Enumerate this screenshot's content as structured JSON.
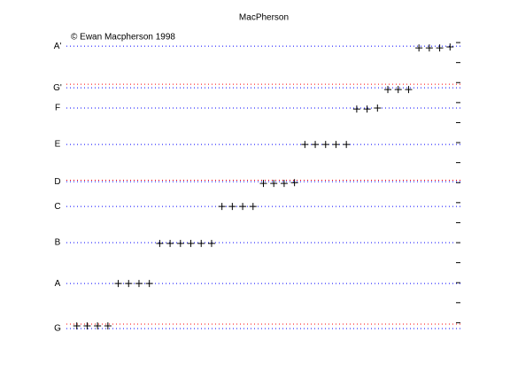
{
  "chart_data": {
    "type": "scatter",
    "title": "MacPherson",
    "annotation": "© Ewan Macpherson 1998",
    "xlim": [
      0,
      38
    ],
    "ylim": [
      0,
      1580
    ],
    "x": [
      1,
      2,
      3,
      4,
      5,
      6,
      7,
      8,
      9,
      10,
      11,
      12,
      13,
      14,
      15,
      16,
      17,
      18,
      19,
      20,
      21,
      22,
      23,
      24,
      25,
      26,
      27,
      28,
      29,
      30,
      31,
      32,
      33,
      34,
      35,
      36,
      37
    ],
    "values": [
      84,
      84,
      84,
      84,
      296,
      296,
      296,
      296,
      496,
      496,
      496,
      496,
      496,
      496,
      681,
      681,
      681,
      681,
      796,
      796,
      796,
      800,
      991,
      991,
      991,
      991,
      991,
      1168,
      1168,
      1173,
      1265,
      1265,
      1265,
      1473,
      1473,
      1473,
      1478
    ],
    "marker_color": "#000000",
    "yticks": [
      {
        "value": 71,
        "label": "G"
      },
      {
        "value": 296,
        "label": "A"
      },
      {
        "value": 500,
        "label": "B"
      },
      {
        "value": 681,
        "label": "C"
      },
      {
        "value": 805,
        "label": "D"
      },
      {
        "value": 991,
        "label": "E"
      },
      {
        "value": 1173,
        "label": "F"
      },
      {
        "value": 1274,
        "label": "G'"
      },
      {
        "value": 1482,
        "label": "A'"
      }
    ],
    "grid_color": "#0000ff",
    "right_yticks": [
      100,
      200,
      300,
      400,
      500,
      600,
      700,
      800,
      900,
      1000,
      1100,
      1200,
      1300,
      1400,
      1500
    ],
    "reference_lines": [
      93,
      812,
      1292
    ],
    "reference_color": "#ff0000"
  }
}
